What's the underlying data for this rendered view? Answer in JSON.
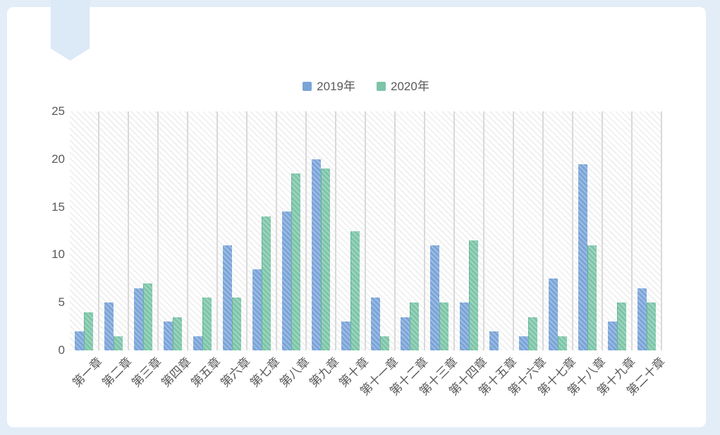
{
  "page": {
    "frame_color": "#e2edf8",
    "ribbon_color": "#dce9f6",
    "text_color": "#595959",
    "gridline_color": "#d9d9d9"
  },
  "chart_data": {
    "type": "bar",
    "title": "",
    "xlabel": "",
    "ylabel": "",
    "ylim": [
      0,
      25
    ],
    "yticks": [
      0,
      5,
      10,
      15,
      20,
      25
    ],
    "grid": "vertical-gridlines-only",
    "plot_background": "diagonal-hatch",
    "legend_position": "top-center",
    "categories": [
      "第一章",
      "第二章",
      "第三章",
      "第四章",
      "第五章",
      "第六章",
      "第七章",
      "第八章",
      "第九章",
      "第十章",
      "第十一章",
      "第十二章",
      "第十三章",
      "第十四章",
      "第十五章",
      "第十六章",
      "第十七章",
      "第十八章",
      "第十九章",
      "第二十章"
    ],
    "series": [
      {
        "name": "2019年",
        "color": "#7aa4d8",
        "values": [
          2,
          5,
          6.5,
          3,
          1.5,
          11,
          8.5,
          14.5,
          20,
          3,
          5.5,
          3.5,
          11,
          5,
          2,
          1.5,
          7.5,
          19.5,
          3,
          6.5
        ]
      },
      {
        "name": "2020年",
        "color": "#7cc5a8",
        "values": [
          4,
          1.5,
          7,
          3.5,
          5.5,
          5.5,
          14,
          18.5,
          19,
          12.5,
          1.5,
          5,
          5,
          11.5,
          0,
          3.5,
          1.5,
          11,
          5,
          5
        ]
      }
    ]
  }
}
